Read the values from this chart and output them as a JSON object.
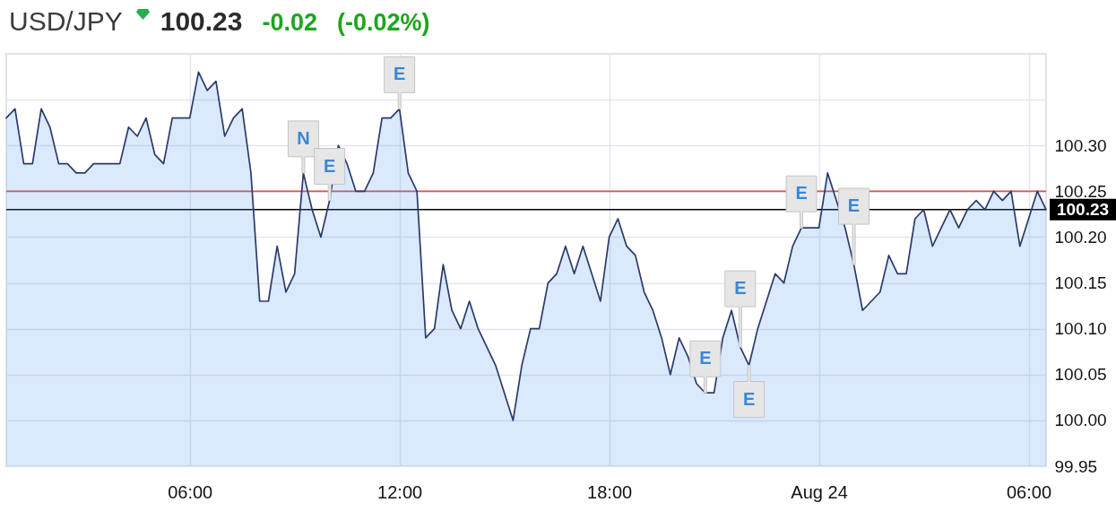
{
  "chart_data": {
    "type": "area",
    "title": "USD/JPY",
    "annotations": [
      "100.23",
      "-0.02",
      "(-0.02%)",
      {
        "text": "N",
        "x": "--08-23T09:15",
        "y": 100.27
      },
      {
        "text": "E",
        "x": "--08-23T10:00",
        "y": 100.24
      },
      {
        "text": "E",
        "x": "--08-23T12:00",
        "y": 100.34
      },
      {
        "text": "E",
        "x": "--08-23T20:45",
        "y": 100.03
      },
      {
        "text": "E",
        "x": "--08-23T21:45",
        "y": 100.08
      },
      {
        "text": "E",
        "x": "--08-23T22:00",
        "y": 100.06
      },
      {
        "text": "E",
        "x": "--08-23T23:30",
        "y": 100.21
      },
      {
        "text": "E",
        "x": "--08-24T01:00",
        "y": 100.17
      }
    ],
    "x": [
      "--08-23T00:45",
      "--08-23T01:00",
      "--08-23T01:15",
      "--08-23T01:30",
      "--08-23T01:45",
      "--08-23T02:00",
      "--08-23T02:15",
      "--08-23T02:30",
      "--08-23T02:45",
      "--08-23T03:00",
      "--08-23T03:15",
      "--08-23T03:30",
      "--08-23T03:45",
      "--08-23T04:00",
      "--08-23T04:15",
      "--08-23T04:30",
      "--08-23T04:45",
      "--08-23T05:00",
      "--08-23T05:15",
      "--08-23T05:30",
      "--08-23T05:45",
      "--08-23T06:00",
      "--08-23T06:15",
      "--08-23T06:30",
      "--08-23T06:45",
      "--08-23T07:00",
      "--08-23T07:15",
      "--08-23T07:30",
      "--08-23T07:45",
      "--08-23T08:00",
      "--08-23T08:15",
      "--08-23T08:30",
      "--08-23T08:45",
      "--08-23T09:00",
      "--08-23T09:15",
      "--08-23T09:30",
      "--08-23T09:45",
      "--08-23T10:00",
      "--08-23T10:15",
      "--08-23T10:30",
      "--08-23T10:45",
      "--08-23T11:00",
      "--08-23T11:15",
      "--08-23T11:30",
      "--08-23T11:45",
      "--08-23T12:00",
      "--08-23T12:15",
      "--08-23T12:30",
      "--08-23T12:45",
      "--08-23T13:00",
      "--08-23T13:15",
      "--08-23T13:30",
      "--08-23T13:45",
      "--08-23T14:00",
      "--08-23T14:15",
      "--08-23T14:30",
      "--08-23T14:45",
      "--08-23T15:00",
      "--08-23T15:15",
      "--08-23T15:30",
      "--08-23T15:45",
      "--08-23T16:00",
      "--08-23T16:15",
      "--08-23T16:30",
      "--08-23T16:45",
      "--08-23T17:00",
      "--08-23T17:15",
      "--08-23T17:30",
      "--08-23T17:45",
      "--08-23T18:00",
      "--08-23T18:15",
      "--08-23T18:30",
      "--08-23T18:45",
      "--08-23T19:00",
      "--08-23T19:15",
      "--08-23T19:30",
      "--08-23T19:45",
      "--08-23T20:00",
      "--08-23T20:15",
      "--08-23T20:30",
      "--08-23T20:45",
      "--08-23T21:00",
      "--08-23T21:15",
      "--08-23T21:30",
      "--08-23T21:45",
      "--08-23T22:00",
      "--08-23T22:15",
      "--08-23T22:30",
      "--08-23T22:45",
      "--08-23T23:00",
      "--08-23T23:15",
      "--08-23T23:30",
      "--08-23T23:45",
      "--08-24T00:00",
      "--08-24T00:15",
      "--08-24T00:30",
      "--08-24T00:45",
      "--08-24T01:00",
      "--08-24T01:15",
      "--08-24T01:30",
      "--08-24T01:45",
      "--08-24T02:00",
      "--08-24T02:15",
      "--08-24T02:30",
      "--08-24T02:45",
      "--08-24T03:00",
      "--08-24T03:15",
      "--08-24T03:30",
      "--08-24T03:45",
      "--08-24T04:00",
      "--08-24T04:15",
      "--08-24T04:30",
      "--08-24T04:45",
      "--08-24T05:00",
      "--08-24T05:15",
      "--08-24T05:30",
      "--08-24T05:45",
      "--08-24T06:00",
      "--08-24T06:15",
      "--08-24T06:30"
    ],
    "series": [
      {
        "color": "#2c3a6b",
        "values": [
          100.33,
          100.34,
          100.28,
          100.28,
          100.34,
          100.32,
          100.28,
          100.28,
          100.27,
          100.27,
          100.28,
          100.28,
          100.28,
          100.28,
          100.32,
          100.31,
          100.33,
          100.29,
          100.28,
          100.33,
          100.33,
          100.33,
          100.38,
          100.36,
          100.37,
          100.31,
          100.33,
          100.34,
          100.27,
          100.13,
          100.13,
          100.19,
          100.14,
          100.16,
          100.27,
          100.23,
          100.2,
          100.24,
          100.3,
          100.28,
          100.25,
          100.25,
          100.27,
          100.33,
          100.33,
          100.34,
          100.27,
          100.25,
          100.09,
          100.1,
          100.17,
          100.12,
          100.1,
          100.13,
          100.1,
          100.08,
          100.06,
          100.03,
          100,
          100.06,
          100.1,
          100.1,
          100.15,
          100.16,
          100.19,
          100.16,
          100.19,
          100.16,
          100.13,
          100.2,
          100.22,
          100.19,
          100.18,
          100.14,
          100.12,
          100.09,
          100.05,
          100.09,
          100.07,
          100.04,
          100.03,
          100.03,
          100.09,
          100.12,
          100.08,
          100.06,
          100.1,
          100.13,
          100.16,
          100.15,
          100.19,
          100.21,
          100.21,
          100.21,
          100.27,
          100.24,
          100.21,
          100.17,
          100.12,
          100.13,
          100.14,
          100.18,
          100.16,
          100.16,
          100.22,
          100.23,
          100.19,
          100.21,
          100.23,
          100.21,
          100.23,
          100.24,
          100.23,
          100.25,
          100.24,
          100.25,
          100.19,
          100.22,
          100.25,
          100.23
        ]
      }
    ],
    "xlim": [
      "--08-23T00:45",
      "--08-24T06:30"
    ],
    "xticks": [
      {
        "value": "--08-23T06:00",
        "label": "06:00"
      },
      {
        "value": "--08-23T12:00",
        "label": "12:00"
      },
      {
        "value": "--08-23T18:00",
        "label": "18:00"
      },
      {
        "value": "--08-24T00:00",
        "label": "Aug 24"
      },
      {
        "value": "--08-24T06:00",
        "label": "06:00"
      }
    ],
    "ylim": [
      99.95,
      100.4
    ],
    "yticks": [
      99.95,
      {
        "value": 100,
        "label": "100.00"
      },
      100.05,
      {
        "value": 100.1,
        "label": "100.10"
      },
      100.15,
      {
        "value": 100.2,
        "label": "100.20"
      },
      100.25,
      {
        "value": 100.3,
        "label": "100.30"
      },
      {
        "value": 100.35,
        "label": null
      }
    ],
    "grid": true,
    "ref_lines": [
      {
        "axis": "y",
        "value": 100.25,
        "color": "#d9534f"
      },
      {
        "axis": "y",
        "value": 100.23,
        "label": "100.23",
        "color": "#000000"
      }
    ]
  }
}
